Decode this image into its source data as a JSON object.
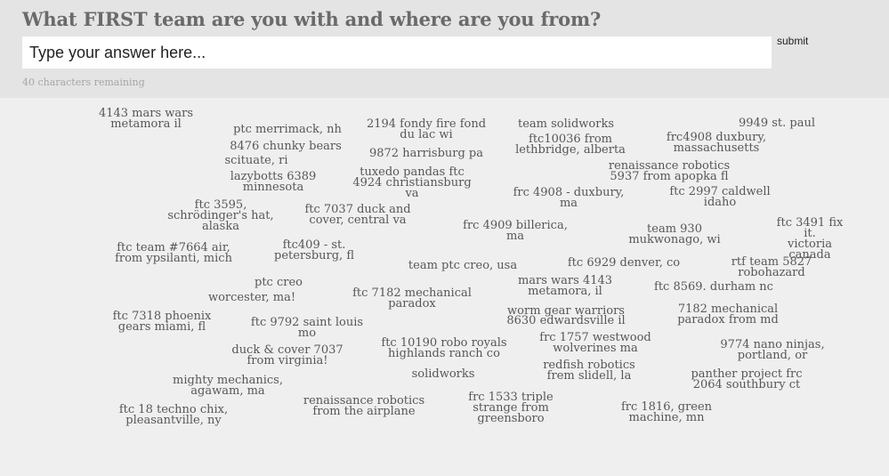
{
  "question": "What FIRST team are you with and where are you from?",
  "input": {
    "placeholder": "Type your answer here..."
  },
  "submit_label": "submit",
  "remaining_text": "40 characters remaining",
  "answers": [
    "4143 mars wars\nmetamora il",
    "ptc merrimack, nh",
    "2194 fondy fire fond\ndu lac wi",
    "team solidworks",
    "9949 st. paul",
    "8476 chunky bears",
    "ftc10036 from\nlethbridge, alberta",
    "frc4908 duxbury,\nmassachusetts",
    "scituate, ri",
    "9872 harrisburg pa",
    "renaissance robotics",
    "tuxedo pandas ftc\n4924 christiansburg\nva",
    "5937 from apopka fl",
    "lazybotts 6389\nminnesota",
    "ftc 3595,\nschrödinger's hat,\nalaska",
    "frc 4908 - duxbury,\nma",
    "ftc 2997 caldwell\nidaho",
    "ftc 7037 duck and\ncover, central va",
    "frc 4909 billerica,\nma",
    "team 930\nmukwonago, wi",
    "ftc 3491 fix it.\nvictoria canada",
    "ftc team #7664 air,\nfrom ypsilanti, mich",
    "ftc409 - st.\npetersburg, fl",
    "ftc 6929 denver, co",
    "rtf team 5827\nrobohazard",
    "team ptc creo, usa",
    "mars wars 4143\nmetamora, il",
    "ptc creo",
    "ftc 7182 mechanical\nparadox",
    "ftc 8569. durham nc",
    "worcester, ma!",
    "ftc 7318 phoenix\ngears miami, fl",
    "worm gear warriors",
    "7182 mechanical\nparadox from md",
    "ftc 9792 saint louis\nmo",
    "8630 edwardsville il",
    "frc 1757 westwood\nwolverines ma",
    "ftc 10190 robo royals\nhighlands ranch co",
    "duck & cover 7037\nfrom virginia!",
    "9774 nano ninjas,\nportland, or",
    "redfish robotics\nfrem slidell, la",
    "solidworks",
    "mighty mechanics,\nagawam, ma",
    "panther project frc\n2064 southbury ct",
    "frc 1533 triple\nstrange from\ngreensboro",
    "renaissance robotics\nfrom the airplane",
    "frc 1816, green\nmachine, mn",
    "ftc 18 techno chix,\npleasantville, ny"
  ]
}
